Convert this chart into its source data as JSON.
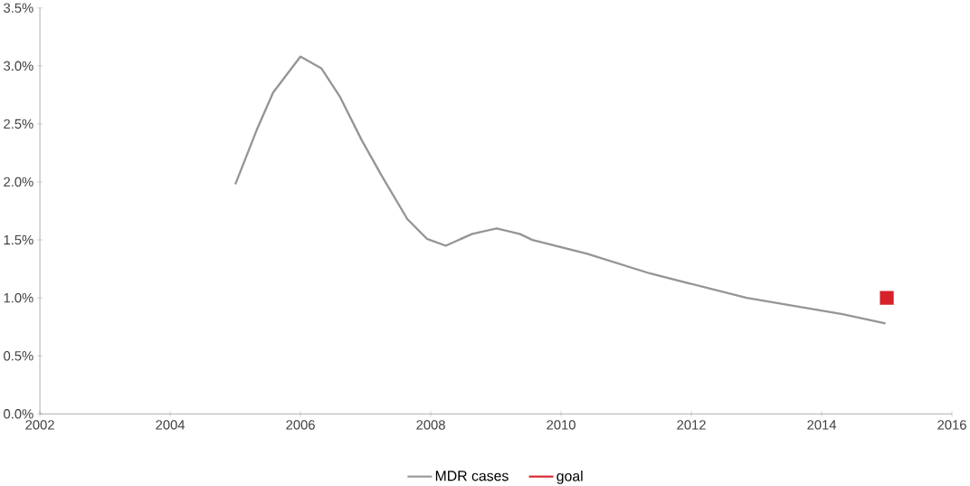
{
  "chart_data": {
    "type": "line",
    "xlim": [
      2002,
      2016
    ],
    "xticks": [
      2002,
      2004,
      2006,
      2008,
      2010,
      2012,
      2014,
      2016
    ],
    "ylim": [
      0,
      3.5
    ],
    "yticks": [
      {
        "value": 0,
        "label": "0.0%"
      },
      {
        "value": 0.5,
        "label": "0.5%"
      },
      {
        "value": 1,
        "label": "1.0%"
      },
      {
        "value": 1.5,
        "label": "1.5%"
      },
      {
        "value": 2,
        "label": "2.0%"
      },
      {
        "value": 2.5,
        "label": "2.5%"
      },
      {
        "value": 3,
        "label": "3.0%"
      },
      {
        "value": 3.5,
        "label": "3.5%"
      }
    ],
    "legend": "bottom",
    "grid": false,
    "series": [
      {
        "name": "MDR cases",
        "color": "#939598",
        "x": [
          2005.0,
          2005.33,
          2005.58,
          2006.0,
          2006.32,
          2006.61,
          2006.94,
          2007.25,
          2007.64,
          2007.94,
          2008.23,
          2008.63,
          2009.01,
          2009.37,
          2009.56,
          2010.4,
          2011.37,
          2012.85,
          2014.32,
          2014.98
        ],
        "values": [
          1.98,
          2.45,
          2.77,
          3.08,
          2.98,
          2.73,
          2.36,
          2.05,
          1.68,
          1.51,
          1.45,
          1.55,
          1.6,
          1.55,
          1.5,
          1.38,
          1.21,
          1.0,
          0.86,
          0.78
        ]
      },
      {
        "name": "goal",
        "color": "#d7212b",
        "type": "scatter",
        "marker": "square",
        "x": [
          2015
        ],
        "values": [
          1.0
        ]
      }
    ]
  }
}
